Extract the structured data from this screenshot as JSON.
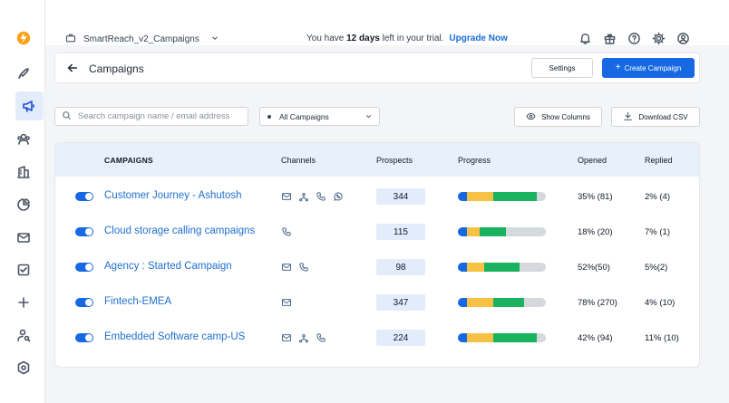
{
  "topbar": {
    "workspace_name": "SmartReach_v2_Campaigns",
    "trial_prefix": "You have ",
    "trial_days": "12 days",
    "trial_suffix": " left in your trial.",
    "upgrade_label": "Upgrade Now"
  },
  "header": {
    "title": "Campaigns",
    "settings_label": "Settings",
    "create_label": "Create Campaign"
  },
  "toolbar": {
    "search_placeholder": "Search campaign name / email address",
    "filter_value": "All Campaigns",
    "show_columns_label": "Show Columns",
    "download_label": "Download CSV"
  },
  "table": {
    "columns": {
      "campaigns": "CAMPAIGNS",
      "channels": "Channels",
      "prospects": "Prospects",
      "progress": "Progress",
      "opened": "Opened",
      "replied": "Replied"
    },
    "rows": [
      {
        "name": "Customer Journey - Ashutosh",
        "channels": [
          "email-icon",
          "linkedin-icon",
          "phone-icon",
          "whatsapp-icon"
        ],
        "prospects": "344",
        "progress": [
          0.1,
          0.3,
          0.5,
          0.05
        ],
        "opened": "35% (81)",
        "replied": "2% (4)",
        "enabled": true
      },
      {
        "name": "Cloud storage calling campaigns",
        "channels": [
          "phone-icon"
        ],
        "prospects": "115",
        "progress": [
          0.1,
          0.15,
          0.3,
          0.45
        ],
        "opened": "18% (20)",
        "replied": "7% (1)",
        "enabled": true
      },
      {
        "name": "Agency : Started Campaign",
        "channels": [
          "email-icon",
          "phone-icon"
        ],
        "prospects": "98",
        "progress": [
          0.1,
          0.2,
          0.4,
          0.3
        ],
        "opened": "52%(50)",
        "replied": "5%(2)",
        "enabled": true
      },
      {
        "name": "Fintech-EMEA",
        "channels": [
          "email-icon"
        ],
        "prospects": "347",
        "progress": [
          0.1,
          0.3,
          0.35,
          0.25
        ],
        "opened": "78% (270)",
        "replied": "4% (10)",
        "enabled": true
      },
      {
        "name": "Embedded Software camp-US",
        "channels": [
          "email-icon",
          "linkedin-icon",
          "phone-icon"
        ],
        "prospects": "224",
        "progress": [
          0.1,
          0.3,
          0.5,
          0.1
        ],
        "opened": "42% (94)",
        "replied": "11% (10)",
        "enabled": true
      }
    ]
  },
  "colors": {
    "accent": "#1668e3",
    "progress_segments": [
      "#1668e3",
      "#f7c244",
      "#19b35f",
      "#d5d9de"
    ]
  }
}
